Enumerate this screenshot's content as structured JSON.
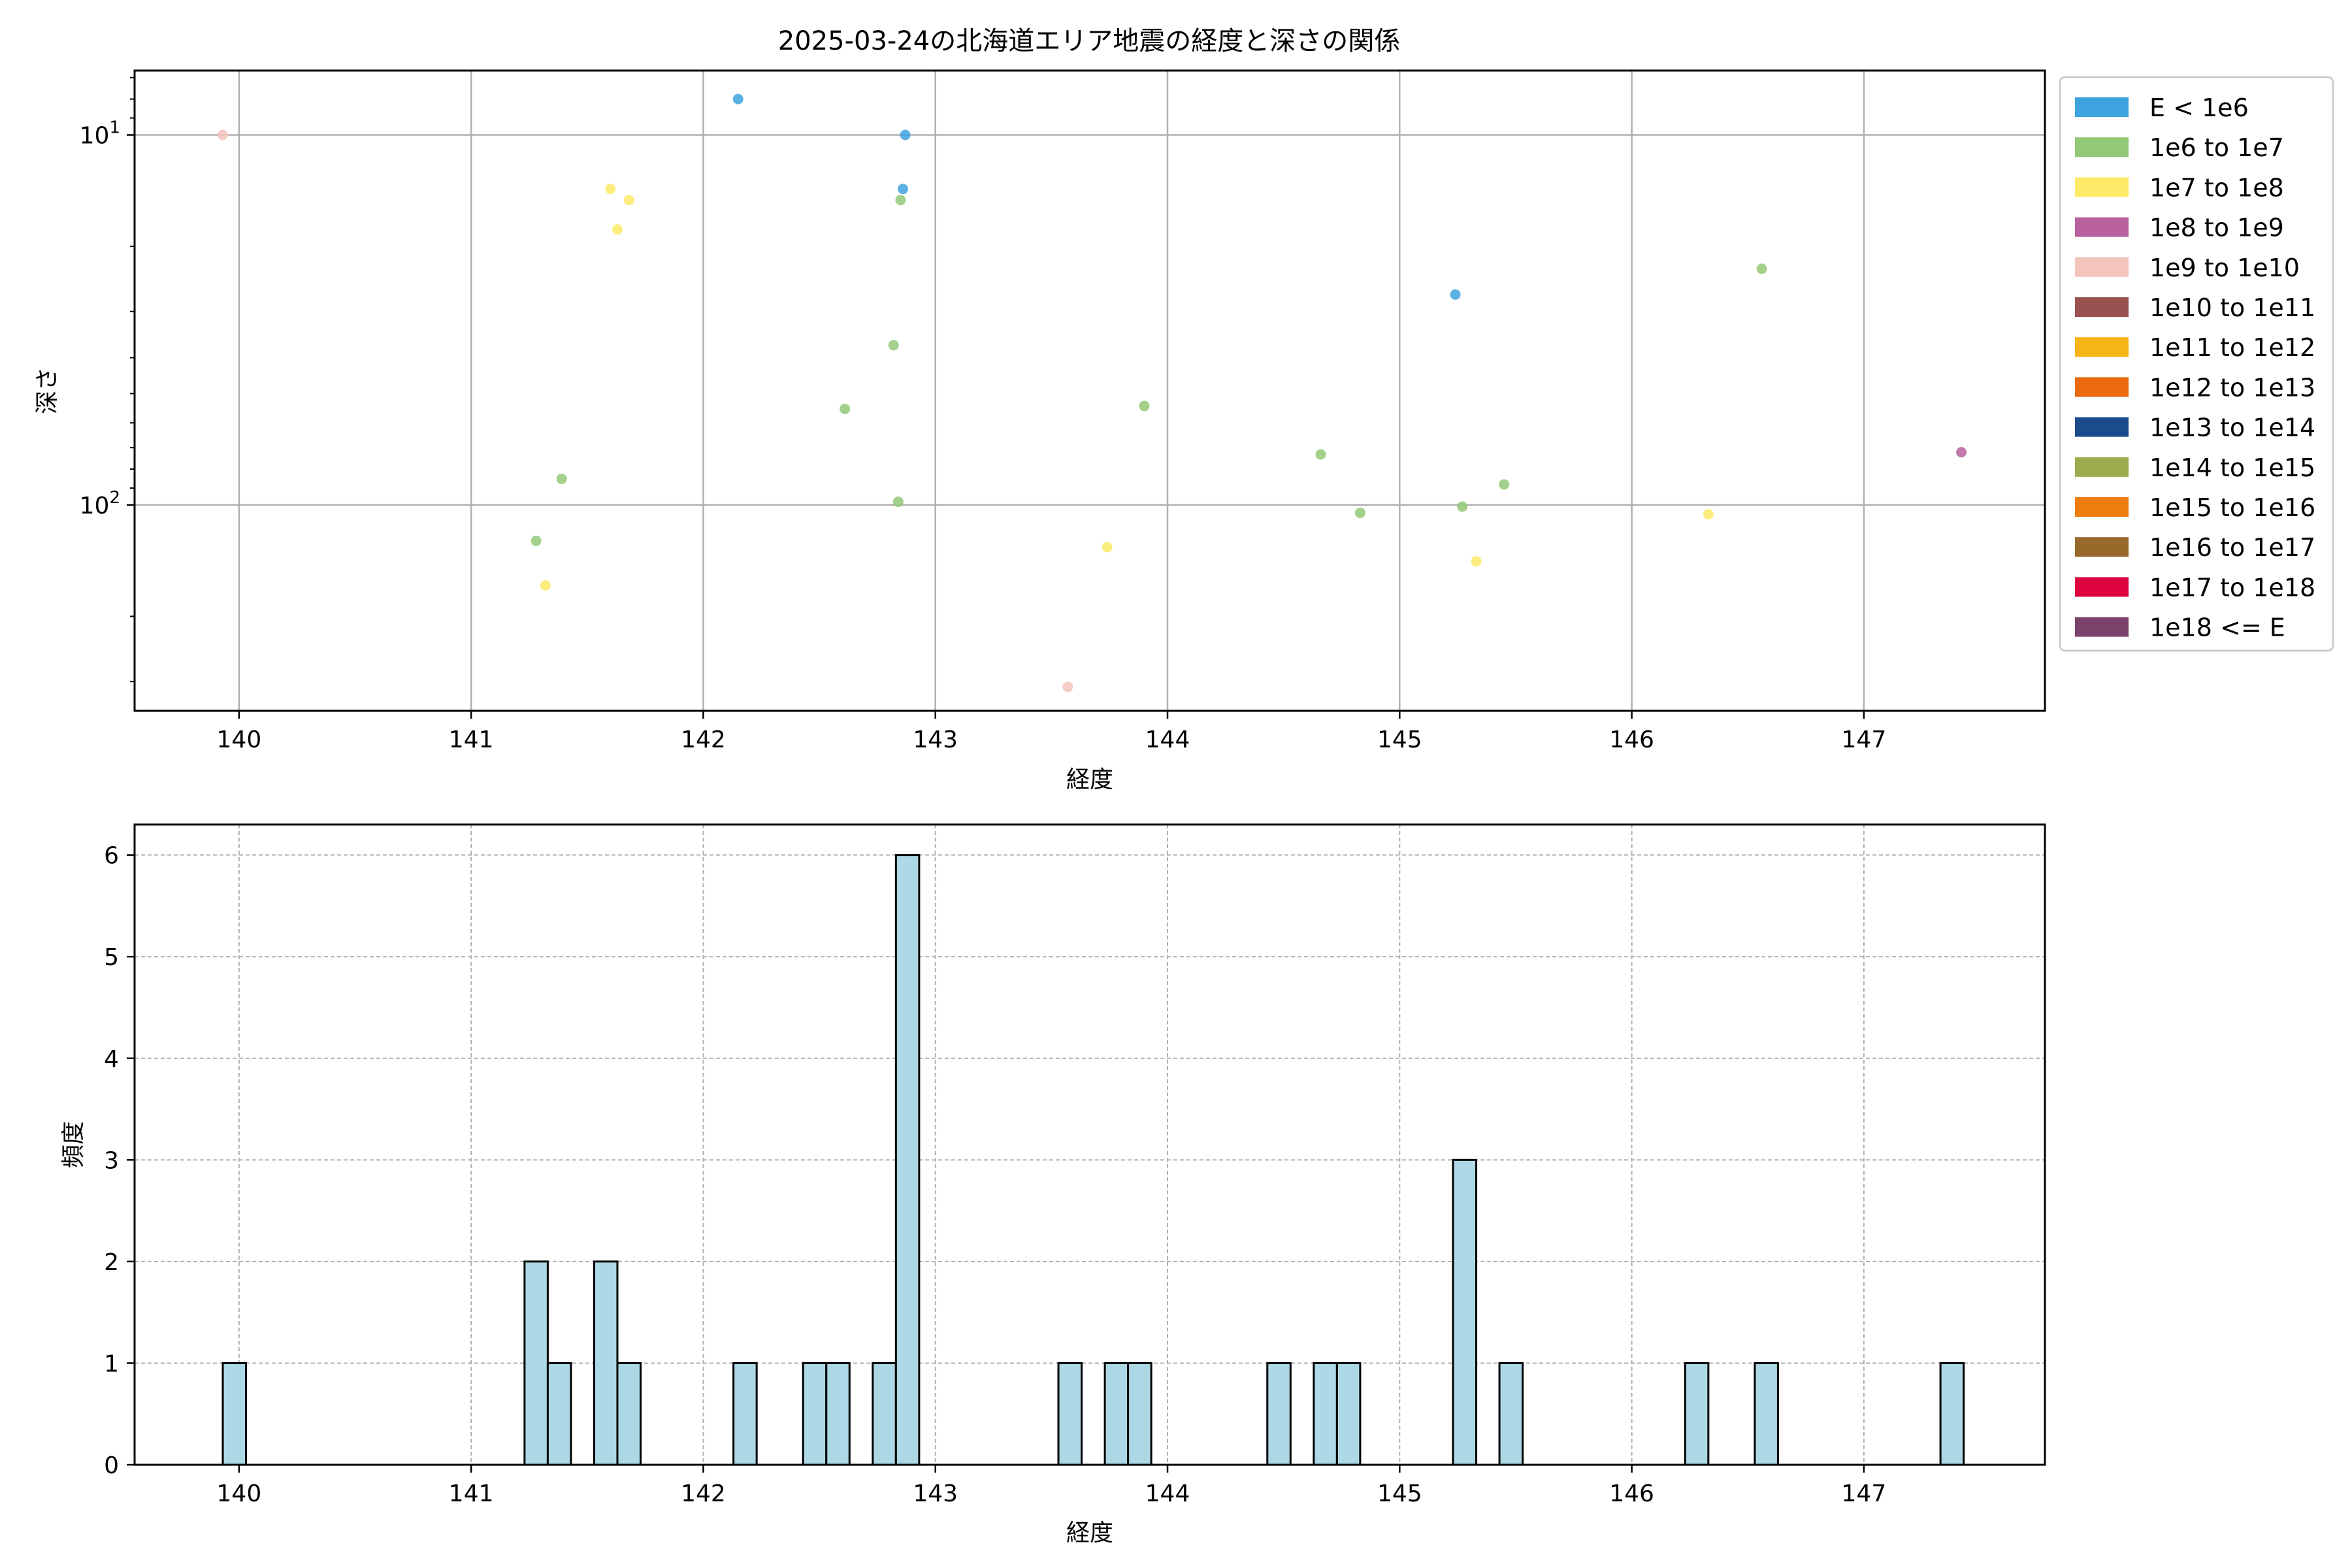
{
  "colors": {
    "E < 1e6": "#3FA3DF",
    "1e6 to 1e7": "#93C876",
    "1e7 to 1e8": "#FCEA68",
    "1e8 to 1e9": "#B9619F",
    "1e9 to 1e10": "#F5C4BC",
    "1e10 to 1e11": "#99524F",
    "1e11 to 1e12": "#F7B415",
    "1e12 to 1e13": "#EA6A0D",
    "1e13 to 1e14": "#1B4A8D",
    "1e14 to 1e15": "#9DAB4F",
    "1e15 to 1e16": "#EE7D0E",
    "1e16 to 1e17": "#97692B",
    "1e17 to 1e18": "#DC033F",
    "1e18 <= E": "#7A426B",
    "hist_fill": "#ADD8E6",
    "grid": "#b0b0b0"
  },
  "chart_data": [
    {
      "type": "scatter",
      "title": "2025-03-24の北海道エリア地震の経度と深さの関係",
      "xlabel": "経度",
      "ylabel": "深さ",
      "xlim": [
        139.55,
        147.78
      ],
      "ylim_log": [
        360,
        6.7
      ],
      "y_scale": "log, inverted",
      "x_ticks": [
        140,
        141,
        142,
        143,
        144,
        145,
        146,
        147
      ],
      "y_tick_labels": [
        {
          "value": 10,
          "base": "10",
          "exp": "1"
        },
        {
          "value": 100,
          "base": "10",
          "exp": "2"
        }
      ],
      "grid": true,
      "legend_position": "outside right",
      "legend": [
        "E < 1e6",
        "1e6 to 1e7",
        "1e7 to 1e8",
        "1e8 to 1e9",
        "1e9 to 1e10",
        "1e10 to 1e11",
        "1e11 to 1e12",
        "1e12 to 1e13",
        "1e13 to 1e14",
        "1e14 to 1e15",
        "1e15 to 1e16",
        "1e16 to 1e17",
        "1e17 to 1e18",
        "1e18 <= E"
      ],
      "points": [
        {
          "x": 139.93,
          "y": 10,
          "cat": "1e9 to 1e10"
        },
        {
          "x": 142.15,
          "y": 8,
          "cat": "E < 1e6"
        },
        {
          "x": 142.87,
          "y": 10,
          "cat": "E < 1e6"
        },
        {
          "x": 142.86,
          "y": 14,
          "cat": "E < 1e6"
        },
        {
          "x": 142.85,
          "y": 15,
          "cat": "1e6 to 1e7"
        },
        {
          "x": 145.24,
          "y": 27,
          "cat": "E < 1e6"
        },
        {
          "x": 141.6,
          "y": 14,
          "cat": "1e7 to 1e8"
        },
        {
          "x": 141.68,
          "y": 15,
          "cat": "1e7 to 1e8"
        },
        {
          "x": 141.63,
          "y": 18,
          "cat": "1e7 to 1e8"
        },
        {
          "x": 146.56,
          "y": 23,
          "cat": "1e6 to 1e7"
        },
        {
          "x": 142.82,
          "y": 37,
          "cat": "1e6 to 1e7"
        },
        {
          "x": 142.61,
          "y": 55,
          "cat": "1e6 to 1e7"
        },
        {
          "x": 143.9,
          "y": 54,
          "cat": "1e6 to 1e7"
        },
        {
          "x": 141.39,
          "y": 85,
          "cat": "1e6 to 1e7"
        },
        {
          "x": 144.66,
          "y": 73,
          "cat": "1e6 to 1e7"
        },
        {
          "x": 142.84,
          "y": 98,
          "cat": "1e6 to 1e7"
        },
        {
          "x": 145.27,
          "y": 101,
          "cat": "1e6 to 1e7"
        },
        {
          "x": 145.45,
          "y": 88,
          "cat": "1e6 to 1e7"
        },
        {
          "x": 144.83,
          "y": 105,
          "cat": "1e6 to 1e7"
        },
        {
          "x": 147.42,
          "y": 72,
          "cat": "1e8 to 1e9"
        },
        {
          "x": 141.28,
          "y": 125,
          "cat": "1e6 to 1e7"
        },
        {
          "x": 141.32,
          "y": 165,
          "cat": "1e7 to 1e8"
        },
        {
          "x": 143.74,
          "y": 130,
          "cat": "1e7 to 1e8"
        },
        {
          "x": 145.33,
          "y": 142,
          "cat": "1e7 to 1e8"
        },
        {
          "x": 146.33,
          "y": 106,
          "cat": "1e7 to 1e8"
        },
        {
          "x": 143.57,
          "y": 310,
          "cat": "1e9 to 1e10"
        }
      ]
    },
    {
      "type": "bar",
      "title": "",
      "xlabel": "経度",
      "ylabel": "頻度",
      "xlim": [
        139.55,
        147.78
      ],
      "ylim": [
        0,
        6.3
      ],
      "x_ticks": [
        140,
        141,
        142,
        143,
        144,
        145,
        146,
        147
      ],
      "y_ticks": [
        0,
        1,
        2,
        3,
        4,
        5,
        6
      ],
      "grid": true,
      "bin_width": 0.1,
      "bins": [
        {
          "left": 139.93,
          "count": 1
        },
        {
          "left": 141.23,
          "count": 2
        },
        {
          "left": 141.33,
          "count": 1
        },
        {
          "left": 141.53,
          "count": 2
        },
        {
          "left": 141.63,
          "count": 1
        },
        {
          "left": 142.13,
          "count": 1
        },
        {
          "left": 142.43,
          "count": 1
        },
        {
          "left": 142.53,
          "count": 1
        },
        {
          "left": 142.73,
          "count": 1
        },
        {
          "left": 142.83,
          "count": 6
        },
        {
          "left": 143.53,
          "count": 1
        },
        {
          "left": 143.73,
          "count": 1
        },
        {
          "left": 143.83,
          "count": 1
        },
        {
          "left": 144.43,
          "count": 1
        },
        {
          "left": 144.63,
          "count": 1
        },
        {
          "left": 144.73,
          "count": 1
        },
        {
          "left": 145.23,
          "count": 3
        },
        {
          "left": 145.43,
          "count": 1
        },
        {
          "left": 146.23,
          "count": 1
        },
        {
          "left": 146.53,
          "count": 1
        },
        {
          "left": 147.33,
          "count": 1
        }
      ]
    }
  ]
}
